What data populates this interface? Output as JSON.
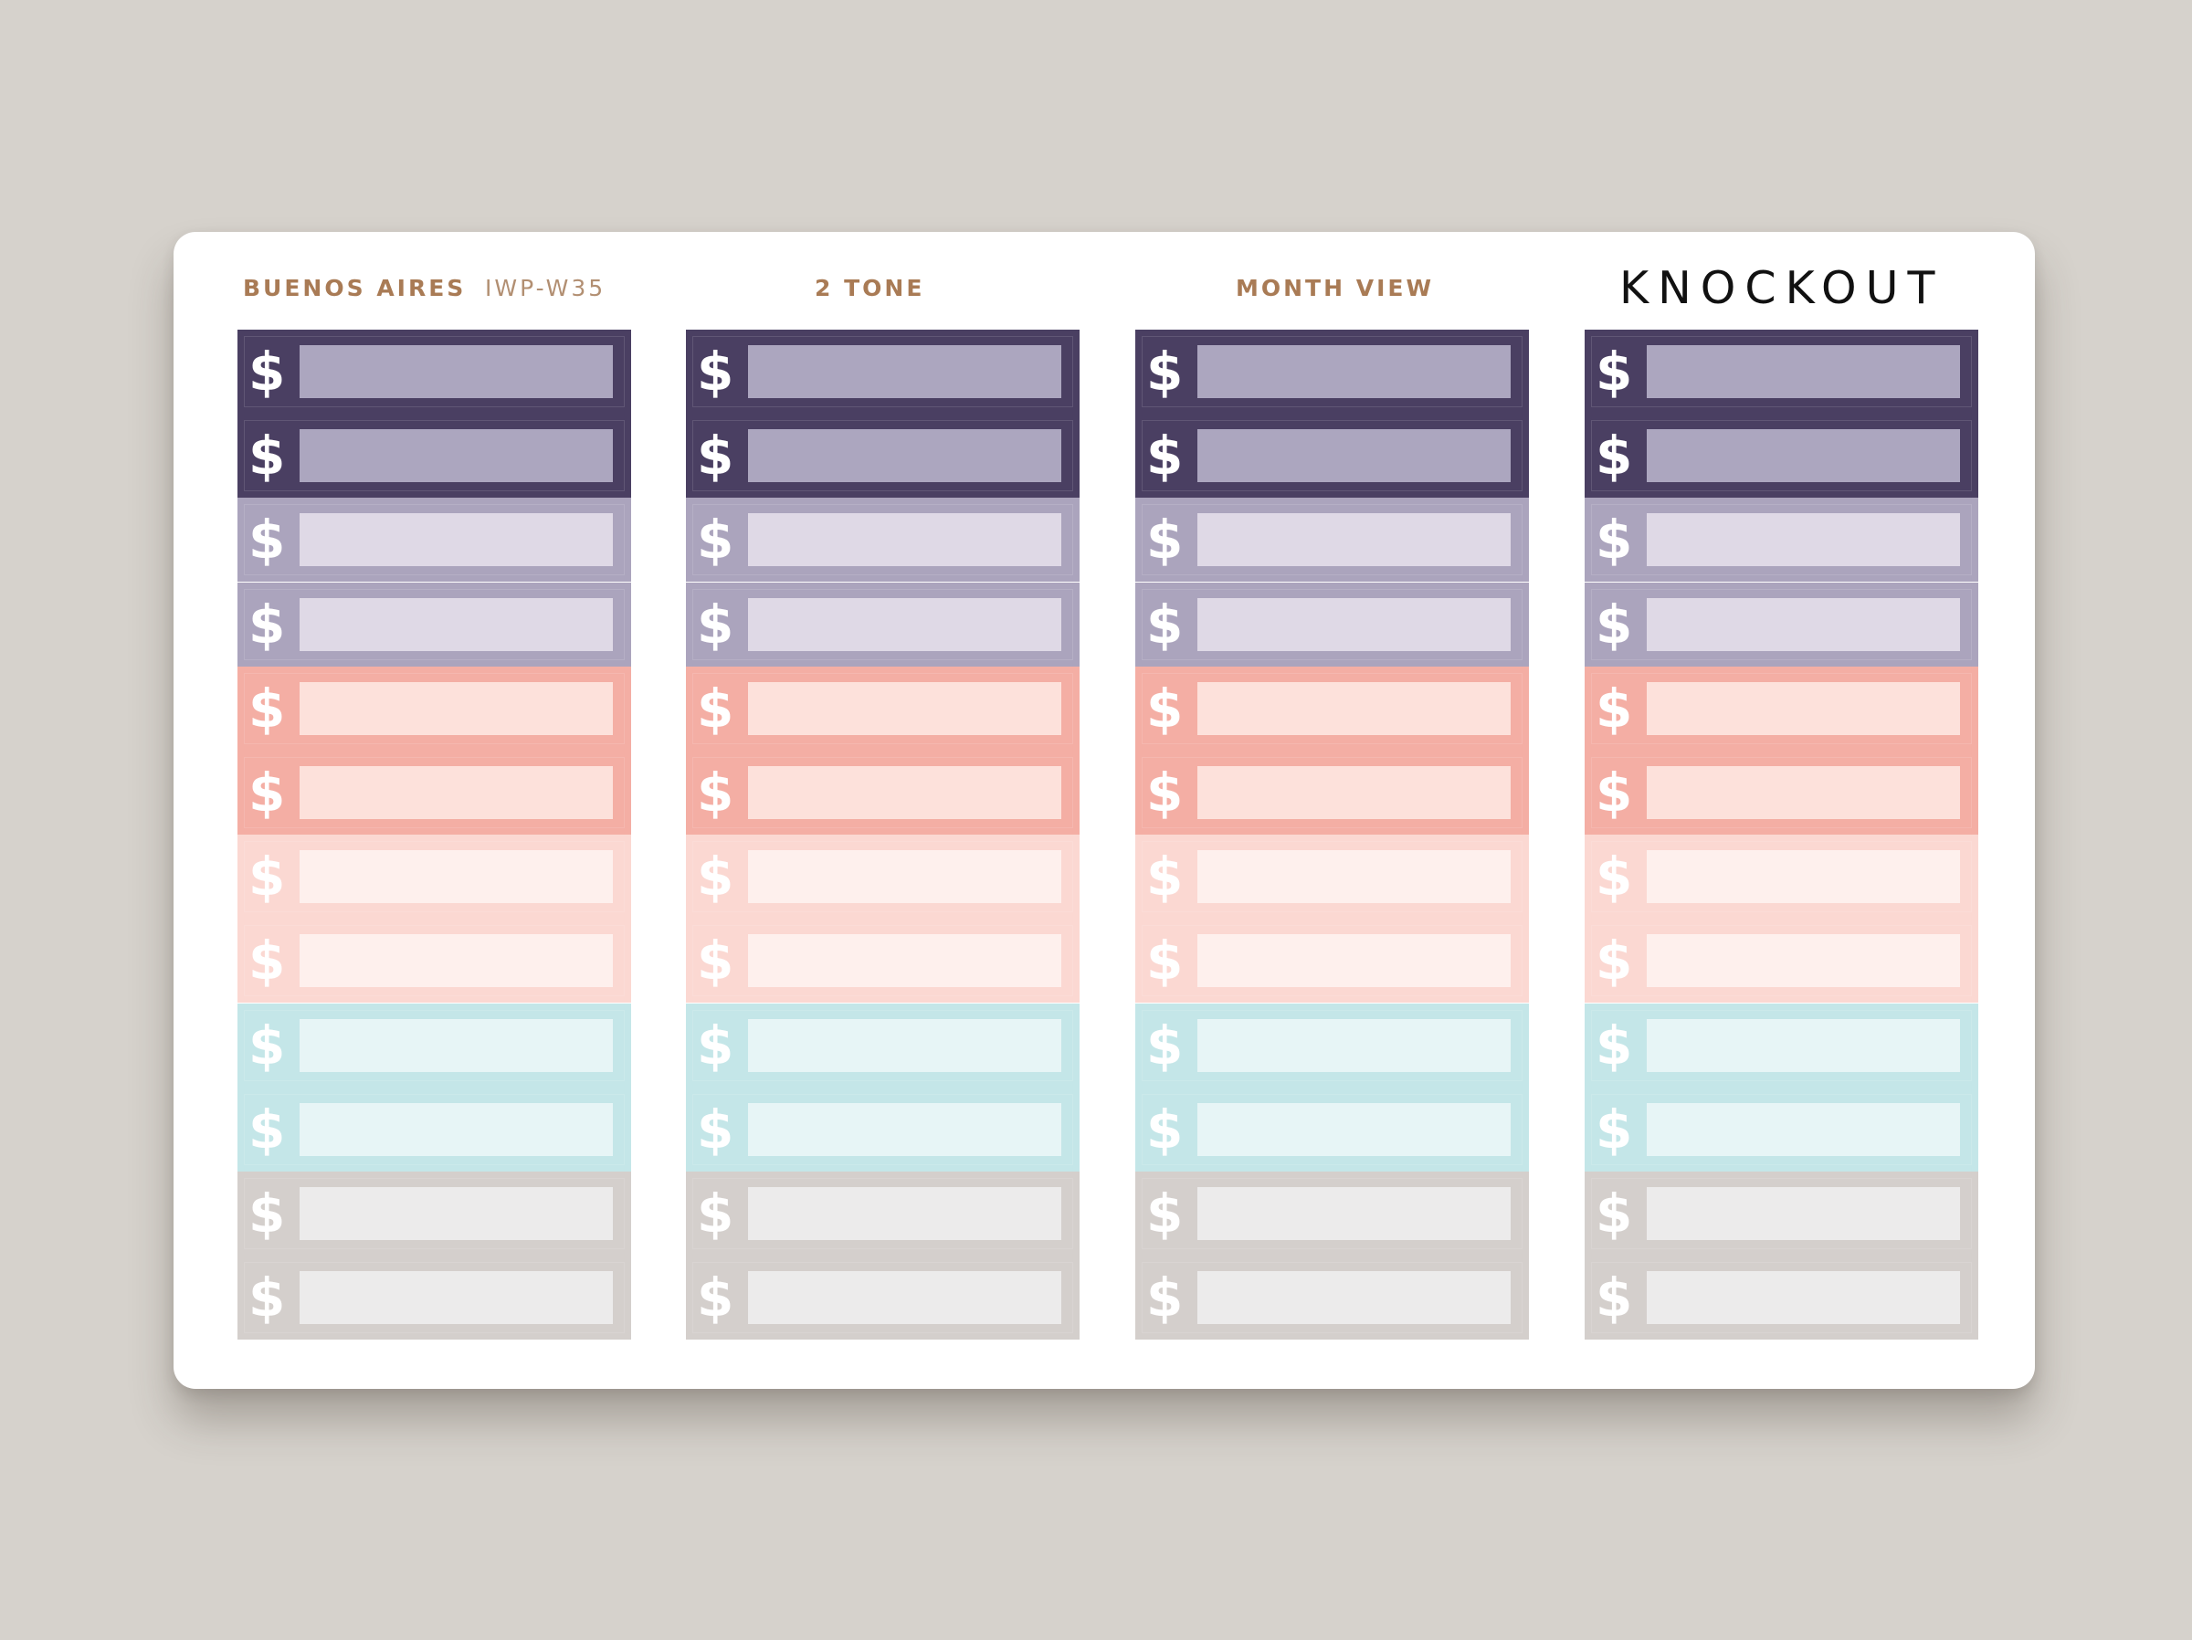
{
  "header": {
    "palette_name": "BUENOS AIRES",
    "product_code": "IWP-W35",
    "style_name": "2 TONE",
    "layout_name": "MONTH VIEW",
    "variant_name": "KNOCKOUT"
  },
  "columns": [
    {
      "strips": [
        {
          "symbol": "$",
          "color": "#4a3f62",
          "box_color": "#aca6bf"
        },
        {
          "symbol": "$",
          "color": "#4a3f62",
          "box_color": "#aca6bf"
        },
        {
          "symbol": "$",
          "color": "#aba4bd",
          "box_color": "#dfd9e6"
        },
        {
          "symbol": "$",
          "color": "#aba4bd",
          "box_color": "#dfd9e6"
        },
        {
          "symbol": "$",
          "color": "#f4aea4",
          "box_color": "#fde1db"
        },
        {
          "symbol": "$",
          "color": "#f4aea4",
          "box_color": "#fde1db"
        },
        {
          "symbol": "$",
          "color": "#fbd8d2",
          "box_color": "#fef0ed"
        },
        {
          "symbol": "$",
          "color": "#fbd8d2",
          "box_color": "#fef0ed"
        },
        {
          "symbol": "$",
          "color": "#c4e6e8",
          "box_color": "#e7f5f6"
        },
        {
          "symbol": "$",
          "color": "#c4e6e8",
          "box_color": "#e7f5f6"
        },
        {
          "symbol": "$",
          "color": "#d4cfcc",
          "box_color": "#ecebeb"
        },
        {
          "symbol": "$",
          "color": "#d4cfcc",
          "box_color": "#ecebeb"
        }
      ]
    },
    {
      "strips": [
        {
          "symbol": "$",
          "color": "#4a3f62",
          "box_color": "#aca6bf"
        },
        {
          "symbol": "$",
          "color": "#4a3f62",
          "box_color": "#aca6bf"
        },
        {
          "symbol": "$",
          "color": "#aba4bd",
          "box_color": "#dfd9e6"
        },
        {
          "symbol": "$",
          "color": "#aba4bd",
          "box_color": "#dfd9e6"
        },
        {
          "symbol": "$",
          "color": "#f4aea4",
          "box_color": "#fde1db"
        },
        {
          "symbol": "$",
          "color": "#f4aea4",
          "box_color": "#fde1db"
        },
        {
          "symbol": "$",
          "color": "#fbd8d2",
          "box_color": "#fef0ed"
        },
        {
          "symbol": "$",
          "color": "#fbd8d2",
          "box_color": "#fef0ed"
        },
        {
          "symbol": "$",
          "color": "#c4e6e8",
          "box_color": "#e7f5f6"
        },
        {
          "symbol": "$",
          "color": "#c4e6e8",
          "box_color": "#e7f5f6"
        },
        {
          "symbol": "$",
          "color": "#d4cfcc",
          "box_color": "#ecebeb"
        },
        {
          "symbol": "$",
          "color": "#d4cfcc",
          "box_color": "#ecebeb"
        }
      ]
    },
    {
      "strips": [
        {
          "symbol": "$",
          "color": "#4a3f62",
          "box_color": "#aca6bf"
        },
        {
          "symbol": "$",
          "color": "#4a3f62",
          "box_color": "#aca6bf"
        },
        {
          "symbol": "$",
          "color": "#aba4bd",
          "box_color": "#dfd9e6"
        },
        {
          "symbol": "$",
          "color": "#aba4bd",
          "box_color": "#dfd9e6"
        },
        {
          "symbol": "$",
          "color": "#f4aea4",
          "box_color": "#fde1db"
        },
        {
          "symbol": "$",
          "color": "#f4aea4",
          "box_color": "#fde1db"
        },
        {
          "symbol": "$",
          "color": "#fbd8d2",
          "box_color": "#fef0ed"
        },
        {
          "symbol": "$",
          "color": "#fbd8d2",
          "box_color": "#fef0ed"
        },
        {
          "symbol": "$",
          "color": "#c4e6e8",
          "box_color": "#e7f5f6"
        },
        {
          "symbol": "$",
          "color": "#c4e6e8",
          "box_color": "#e7f5f6"
        },
        {
          "symbol": "$",
          "color": "#d4cfcc",
          "box_color": "#ecebeb"
        },
        {
          "symbol": "$",
          "color": "#d4cfcc",
          "box_color": "#ecebeb"
        }
      ]
    },
    {
      "strips": [
        {
          "symbol": "$",
          "color": "#4a3f62",
          "box_color": "#aca6bf"
        },
        {
          "symbol": "$",
          "color": "#4a3f62",
          "box_color": "#aca6bf"
        },
        {
          "symbol": "$",
          "color": "#aba4bd",
          "box_color": "#dfd9e6"
        },
        {
          "symbol": "$",
          "color": "#aba4bd",
          "box_color": "#dfd9e6"
        },
        {
          "symbol": "$",
          "color": "#f4aea4",
          "box_color": "#fde1db"
        },
        {
          "symbol": "$",
          "color": "#f4aea4",
          "box_color": "#fde1db"
        },
        {
          "symbol": "$",
          "color": "#fbd8d2",
          "box_color": "#fef0ed"
        },
        {
          "symbol": "$",
          "color": "#fbd8d2",
          "box_color": "#fef0ed"
        },
        {
          "symbol": "$",
          "color": "#c4e6e8",
          "box_color": "#e7f5f6"
        },
        {
          "symbol": "$",
          "color": "#c4e6e8",
          "box_color": "#e7f5f6"
        },
        {
          "symbol": "$",
          "color": "#d4cfcc",
          "box_color": "#ecebeb"
        },
        {
          "symbol": "$",
          "color": "#d4cfcc",
          "box_color": "#ecebeb"
        }
      ]
    }
  ]
}
